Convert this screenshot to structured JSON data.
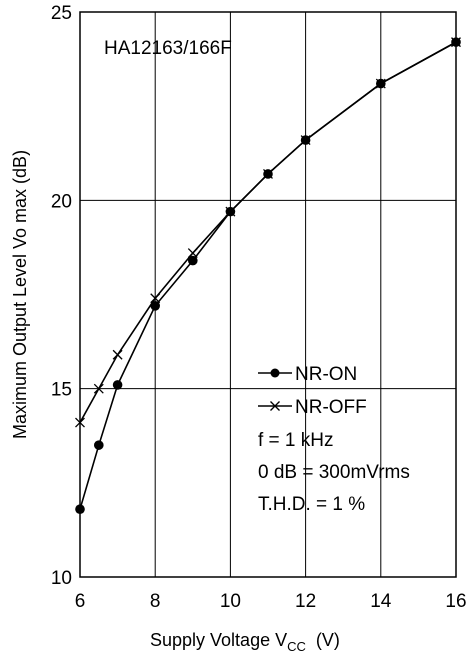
{
  "chart_data": {
    "type": "line",
    "title": "",
    "annotation": "HA12163/166F",
    "xlabel": {
      "main": "Supply Voltage V",
      "sub": "CC",
      "unit": "  (V)"
    },
    "ylabel": "Maximum Output Level Vo max  (dB)",
    "xlim": [
      6,
      16
    ],
    "ylim": [
      10,
      25
    ],
    "x_ticks": [
      6,
      8,
      10,
      12,
      14,
      16
    ],
    "y_ticks": [
      10,
      15,
      20,
      25
    ],
    "grid": true,
    "series": [
      {
        "name": "NR-ON",
        "marker": "filled-circle",
        "x": [
          6,
          6.5,
          7,
          8,
          9,
          10,
          11,
          12,
          14,
          16
        ],
        "y": [
          11.8,
          13.5,
          15.1,
          17.2,
          18.4,
          19.7,
          20.7,
          21.6,
          23.1,
          24.2
        ]
      },
      {
        "name": "NR-OFF",
        "marker": "x",
        "x": [
          6,
          6.5,
          7,
          8,
          9,
          10,
          11,
          12,
          14,
          16
        ],
        "y": [
          14.1,
          15.0,
          15.9,
          17.4,
          18.6,
          19.7,
          20.7,
          21.6,
          23.1,
          24.2
        ]
      }
    ],
    "legend": {
      "placement": "lower-right",
      "notes": [
        "f = 1 kHz",
        "0 dB = 300mVrms",
        "T.H.D. = 1 %"
      ]
    }
  },
  "colors": {
    "line": "#000000",
    "background": "#ffffff"
  }
}
